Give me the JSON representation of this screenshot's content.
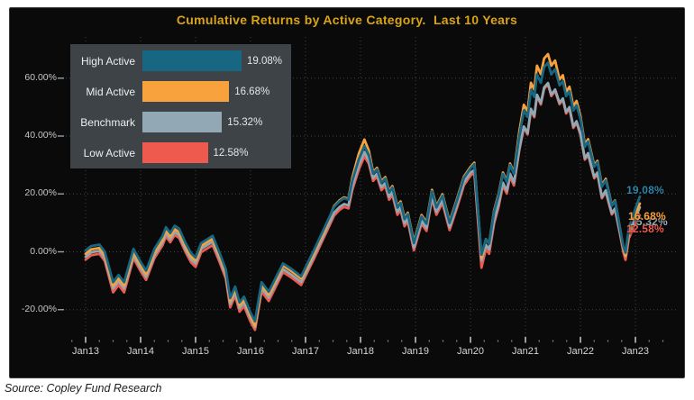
{
  "page": {
    "source_note": "Source: Copley Fund Research"
  },
  "legend": {
    "items": [
      {
        "id": "high-active",
        "label": "High Active",
        "value": 19.08,
        "value_label": "19.08%",
        "color": "#176682"
      },
      {
        "id": "mid-active",
        "label": "Mid Active",
        "value": 16.68,
        "value_label": "16.68%",
        "color": "#f8a23d"
      },
      {
        "id": "benchmark",
        "label": "Benchmark",
        "value": 15.32,
        "value_label": "15.32%",
        "color": "#92a8b4"
      },
      {
        "id": "low-active",
        "label": "Low Active",
        "value": 12.58,
        "value_label": "12.58%",
        "color": "#ee5a4d"
      }
    ]
  },
  "chart_data": {
    "type": "line",
    "title": "Cumulative Returns by Active Category.  Last 10 Years",
    "title_color": "#d9a417",
    "panel_background": "#0a0a0b",
    "grid_color": "#3f4244",
    "legend_background": "#3e4347",
    "legend_position": "top-left",
    "grid": "dotted",
    "x_axis": {
      "tick_labels": [
        "Jan13",
        "Jan14",
        "Jan15",
        "Jan16",
        "Jan17",
        "Jan18",
        "Jan19",
        "Jan20",
        "Jan21",
        "Jan22",
        "Jan23"
      ],
      "tick_years": [
        2013,
        2014,
        2015,
        2016,
        2017,
        2018,
        2019,
        2020,
        2021,
        2022,
        2023
      ]
    },
    "y_axis": {
      "tick_labels": [
        "60.00%",
        "40.00%",
        "20.00%",
        "0.00%",
        "-20.00%"
      ],
      "tick_values": [
        60,
        40,
        20,
        0,
        -20
      ],
      "range": [
        -30,
        72
      ]
    },
    "x": [
      2013.0,
      2013.1,
      2013.25,
      2013.35,
      2013.5,
      2013.6,
      2013.7,
      2013.87,
      2014.0,
      2014.1,
      2014.25,
      2014.4,
      2014.46,
      2014.54,
      2014.62,
      2014.7,
      2014.82,
      2014.92,
      2015.0,
      2015.1,
      2015.31,
      2015.44,
      2015.55,
      2015.63,
      2015.72,
      2015.8,
      2015.88,
      2016.0,
      2016.08,
      2016.2,
      2016.33,
      2016.59,
      2016.75,
      2016.92,
      2017.15,
      2017.36,
      2017.52,
      2017.62,
      2017.7,
      2017.78,
      2017.85,
      2017.97,
      2018.07,
      2018.15,
      2018.23,
      2018.3,
      2018.38,
      2018.45,
      2018.52,
      2018.58,
      2018.67,
      2018.73,
      2018.8,
      2018.86,
      2018.97,
      2019.11,
      2019.2,
      2019.3,
      2019.38,
      2019.49,
      2019.62,
      2019.75,
      2019.88,
      2020.0,
      2020.07,
      2020.2,
      2020.28,
      2020.34,
      2020.43,
      2020.51,
      2020.59,
      2020.66,
      2020.72,
      2020.79,
      2020.89,
      2020.97,
      2021.04,
      2021.1,
      2021.16,
      2021.21,
      2021.28,
      2021.34,
      2021.41,
      2021.47,
      2021.54,
      2021.62,
      2021.68,
      2021.74,
      2021.8,
      2021.87,
      2021.93,
      2022.0,
      2022.08,
      2022.14,
      2022.25,
      2022.31,
      2022.39,
      2022.46,
      2022.57,
      2022.63,
      2022.72,
      2022.78,
      2022.82,
      2022.88,
      2022.95,
      2023.02,
      2023.08
    ],
    "series": [
      {
        "id": "high-active",
        "name": "High Active",
        "color": "#176682",
        "end_label": "19.08%",
        "end_label_color": "#2e85a6",
        "final_value": 19.08,
        "values": [
          0.5,
          2.0,
          2.5,
          0.0,
          -10.5,
          -8.0,
          -10.5,
          1.0,
          -3.5,
          -6.5,
          1.0,
          5.5,
          8.5,
          6.5,
          9.0,
          8.0,
          3.0,
          -0.5,
          -2.0,
          3.0,
          5.5,
          -0.5,
          -6.0,
          -16.0,
          -12.0,
          -17.5,
          -15.5,
          -21.0,
          -24.0,
          -10.5,
          -13.8,
          -4.0,
          -6.0,
          -8.5,
          0.5,
          9.0,
          15.5,
          17.5,
          18.5,
          18.0,
          24.5,
          32.0,
          36.5,
          33.5,
          27.0,
          28.5,
          23.8,
          25.3,
          20.5,
          22.2,
          15.3,
          16.9,
          11.3,
          13.0,
          3.0,
          12.2,
          9.7,
          20.9,
          15.3,
          19.4,
          10.0,
          17.5,
          25.5,
          28.8,
          30.3,
          -1.0,
          4.4,
          2.8,
          13.8,
          19.4,
          26.9,
          24.1,
          30.0,
          26.9,
          40.3,
          48.8,
          46.6,
          55.9,
          53.5,
          61.3,
          58.4,
          63.8,
          65.3,
          61.3,
          63.1,
          57.5,
          59.0,
          53.8,
          55.5,
          48.8,
          50.6,
          45.9,
          36.3,
          38.1,
          29.4,
          30.9,
          22.5,
          24.7,
          15.9,
          17.5,
          8.1,
          1.9,
          -0.3,
          8.1,
          12.2,
          16.0,
          19.08
        ]
      },
      {
        "id": "mid-active",
        "name": "Mid Active",
        "color": "#f8a23d",
        "end_label": "16.68%",
        "end_label_color": "#f8a23d",
        "final_value": 16.68,
        "values": [
          -0.7,
          0.8,
          1.3,
          -1.2,
          -11.7,
          -9.2,
          -11.7,
          -0.2,
          -4.7,
          -7.7,
          -0.2,
          4.3,
          7.3,
          5.3,
          7.8,
          6.8,
          1.8,
          -1.7,
          -3.0,
          2.0,
          4.5,
          -1.5,
          -7.0,
          -17.0,
          -13.0,
          -18.5,
          -16.5,
          -22.0,
          -25.5,
          -11.5,
          -14.8,
          -4.8,
          -6.8,
          -9.3,
          -0.3,
          8.2,
          15.8,
          17.8,
          18.8,
          18.3,
          25.5,
          34.0,
          38.8,
          35.0,
          27.5,
          29.0,
          24.3,
          25.8,
          21.0,
          22.7,
          15.8,
          17.4,
          11.8,
          13.5,
          3.5,
          12.7,
          10.2,
          21.4,
          15.8,
          19.9,
          10.5,
          18.0,
          26.0,
          29.3,
          30.8,
          -2.0,
          4.4,
          2.8,
          14.3,
          19.9,
          27.4,
          24.6,
          30.5,
          27.4,
          41.8,
          50.8,
          48.6,
          58.4,
          56.0,
          64.3,
          61.4,
          66.8,
          68.3,
          64.3,
          66.1,
          59.5,
          61.0,
          55.3,
          57.0,
          50.3,
          52.1,
          46.9,
          37.1,
          38.9,
          29.9,
          31.4,
          23.0,
          25.2,
          16.1,
          17.7,
          8.1,
          1.4,
          -1.3,
          6.9,
          10.4,
          13.8,
          16.68
        ]
      },
      {
        "id": "benchmark",
        "name": "Benchmark",
        "color": "#92a8b4",
        "end_label": "15.32%",
        "end_label_color": "#9db1bd",
        "final_value": 15.32,
        "values": [
          -1.7,
          -0.2,
          0.3,
          -2.2,
          -12.7,
          -10.2,
          -12.7,
          -1.2,
          -5.7,
          -8.7,
          -1.2,
          3.3,
          6.3,
          4.3,
          6.8,
          5.8,
          0.8,
          -2.7,
          -4.0,
          1.0,
          3.5,
          -2.5,
          -8.0,
          -18.0,
          -14.0,
          -19.5,
          -17.5,
          -23.0,
          -26.0,
          -12.5,
          -15.8,
          -6.0,
          -8.0,
          -10.5,
          -1.5,
          7.0,
          13.5,
          15.5,
          16.5,
          16.0,
          22.5,
          30.0,
          34.5,
          31.5,
          25.5,
          27.0,
          22.3,
          23.8,
          19.0,
          20.7,
          13.8,
          15.4,
          9.8,
          11.5,
          1.5,
          10.7,
          8.2,
          19.4,
          13.8,
          17.9,
          8.5,
          16.0,
          24.0,
          27.3,
          28.3,
          -3.0,
          2.4,
          0.8,
          10.8,
          16.4,
          23.9,
          21.1,
          27.0,
          23.9,
          35.8,
          43.3,
          41.1,
          49.4,
          47.0,
          54.3,
          51.4,
          56.8,
          58.3,
          54.3,
          56.1,
          51.5,
          53.0,
          48.3,
          50.0,
          43.3,
          45.1,
          40.9,
          32.3,
          34.1,
          25.9,
          27.4,
          19.0,
          21.2,
          13.4,
          15.0,
          6.6,
          0.9,
          -1.5,
          6.1,
          9.4,
          12.7,
          15.32
        ]
      },
      {
        "id": "low-active",
        "name": "Low Active",
        "color": "#ee5a4d",
        "end_label": "12.58%",
        "end_label_color": "#ee5a4d",
        "final_value": 12.58,
        "values": [
          -2.7,
          -1.2,
          -0.7,
          -3.2,
          -14.0,
          -11.5,
          -14.0,
          -2.2,
          -6.7,
          -9.7,
          -2.2,
          2.3,
          5.3,
          3.3,
          5.8,
          4.8,
          -0.2,
          -3.7,
          -5.2,
          -0.2,
          2.3,
          -3.7,
          -9.2,
          -19.2,
          -15.2,
          -20.7,
          -18.7,
          -24.2,
          -27.0,
          -13.7,
          -17.0,
          -7.0,
          -9.0,
          -11.5,
          -2.5,
          6.0,
          12.5,
          14.5,
          15.5,
          15.0,
          21.3,
          28.5,
          33.0,
          30.5,
          24.5,
          26.0,
          21.3,
          22.8,
          18.0,
          19.7,
          12.8,
          14.4,
          8.8,
          10.5,
          0.5,
          9.7,
          7.2,
          18.4,
          12.8,
          16.9,
          7.5,
          15.0,
          23.0,
          26.3,
          27.3,
          -5.5,
          0.9,
          -0.7,
          9.8,
          15.4,
          22.9,
          20.1,
          26.0,
          22.9,
          35.3,
          42.8,
          40.6,
          48.9,
          46.5,
          53.8,
          50.9,
          56.3,
          57.8,
          53.8,
          55.6,
          51.0,
          52.5,
          47.8,
          49.5,
          42.8,
          44.6,
          40.4,
          31.8,
          33.6,
          25.4,
          26.9,
          18.5,
          20.7,
          12.9,
          14.5,
          6.1,
          -0.1,
          -2.8,
          4.6,
          7.7,
          10.5,
          12.58
        ]
      }
    ]
  }
}
